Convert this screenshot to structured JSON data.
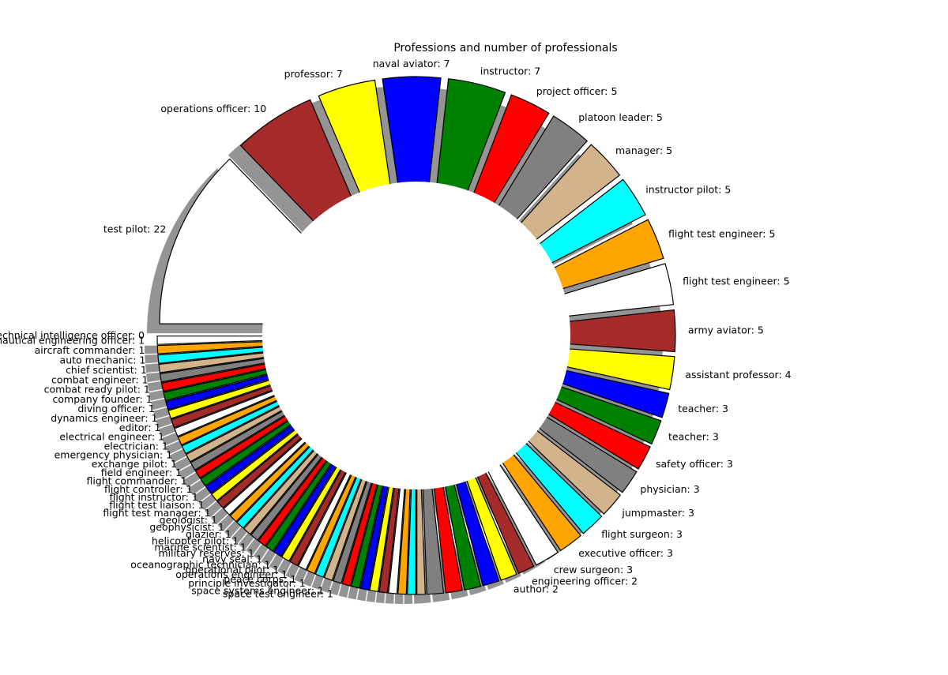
{
  "chart_data": {
    "type": "pie",
    "title": "Professions and number of professionals",
    "exploded": true,
    "shadow": true,
    "start_angle_deg": 180,
    "direction": "clockwise",
    "colors": [
      "#ffffff",
      "#a52a2a",
      "#ffff00",
      "#0000ff",
      "#008000",
      "#ff0000",
      "#808080",
      "#d2b48c",
      "#00ffff",
      "#ffa500"
    ],
    "slices": [
      {
        "label": "test pilot",
        "value": 22
      },
      {
        "label": "operations officer",
        "value": 10
      },
      {
        "label": "professor",
        "value": 7
      },
      {
        "label": "naval aviator",
        "value": 7
      },
      {
        "label": "instructor",
        "value": 7
      },
      {
        "label": "project officer",
        "value": 5
      },
      {
        "label": "platoon leader",
        "value": 5
      },
      {
        "label": "manager",
        "value": 5
      },
      {
        "label": "instructor pilot",
        "value": 5
      },
      {
        "label": "flight test engineer",
        "value": 5
      },
      {
        "label": "flight test engineer",
        "value": 5
      },
      {
        "label": "army aviator",
        "value": 5
      },
      {
        "label": "assistant professor",
        "value": 4
      },
      {
        "label": "teacher",
        "value": 3
      },
      {
        "label": "teacher",
        "value": 3
      },
      {
        "label": "safety officer",
        "value": 3
      },
      {
        "label": "physician",
        "value": 3
      },
      {
        "label": "jumpmaster",
        "value": 3
      },
      {
        "label": "flight surgeon",
        "value": 3
      },
      {
        "label": "executive officer",
        "value": 3
      },
      {
        "label": "crew surgeon",
        "value": 3
      },
      {
        "label": "engineering officer",
        "value": 2
      },
      {
        "label": "author",
        "value": 2
      },
      {
        "label": "",
        "value": 2
      },
      {
        "label": "",
        "value": 2
      },
      {
        "label": "",
        "value": 2
      },
      {
        "label": "",
        "value": 2
      },
      {
        "label": "",
        "value": 1
      },
      {
        "label": "",
        "value": 1
      },
      {
        "label": "",
        "value": 1
      },
      {
        "label": "",
        "value": 1
      },
      {
        "label": "",
        "value": 1
      },
      {
        "label": "",
        "value": 1
      },
      {
        "label": "",
        "value": 1
      },
      {
        "label": "",
        "value": 1
      },
      {
        "label": "",
        "value": 1
      },
      {
        "label": "space test engineer",
        "value": 1
      },
      {
        "label": "space systems engineer",
        "value": 1
      },
      {
        "label": "",
        "value": 1
      },
      {
        "label": "principle investigator",
        "value": 1
      },
      {
        "label": "peace corps",
        "value": 1
      },
      {
        "label": "operations engineer",
        "value": 1
      },
      {
        "label": "operational pilot",
        "value": 1
      },
      {
        "label": "oceanographic technician",
        "value": 1
      },
      {
        "label": "navy seal",
        "value": 1
      },
      {
        "label": "military reserves",
        "value": 1
      },
      {
        "label": "marine scientist",
        "value": 1
      },
      {
        "label": "helicopter pilot",
        "value": 1
      },
      {
        "label": "glazier",
        "value": 1
      },
      {
        "label": "geophysicist",
        "value": 1
      },
      {
        "label": "geologist",
        "value": 1
      },
      {
        "label": "flight test manager",
        "value": 1
      },
      {
        "label": "flight test liaison",
        "value": 1
      },
      {
        "label": "flight instructor",
        "value": 1
      },
      {
        "label": "flight controller",
        "value": 1
      },
      {
        "label": "flight commander",
        "value": 1
      },
      {
        "label": "field engineer",
        "value": 1
      },
      {
        "label": "exchange pilot",
        "value": 1
      },
      {
        "label": "emergency physician",
        "value": 1
      },
      {
        "label": "electrician",
        "value": 1
      },
      {
        "label": "electrical engineer",
        "value": 1
      },
      {
        "label": "editor",
        "value": 1
      },
      {
        "label": "dynamics engineer",
        "value": 1
      },
      {
        "label": "diving officer",
        "value": 1
      },
      {
        "label": "company founder",
        "value": 1
      },
      {
        "label": "combat ready pilot",
        "value": 1
      },
      {
        "label": "combat engineer",
        "value": 1
      },
      {
        "label": "chief scientist",
        "value": 1
      },
      {
        "label": "auto mechanic",
        "value": 1
      },
      {
        "label": "aircraft commander",
        "value": 1
      },
      {
        "label": "aeronautical engineering officer",
        "value": 1
      },
      {
        "label": "technical intelligence officer",
        "value": 0
      },
      {
        "label": "",
        "value": 0
      }
    ]
  }
}
